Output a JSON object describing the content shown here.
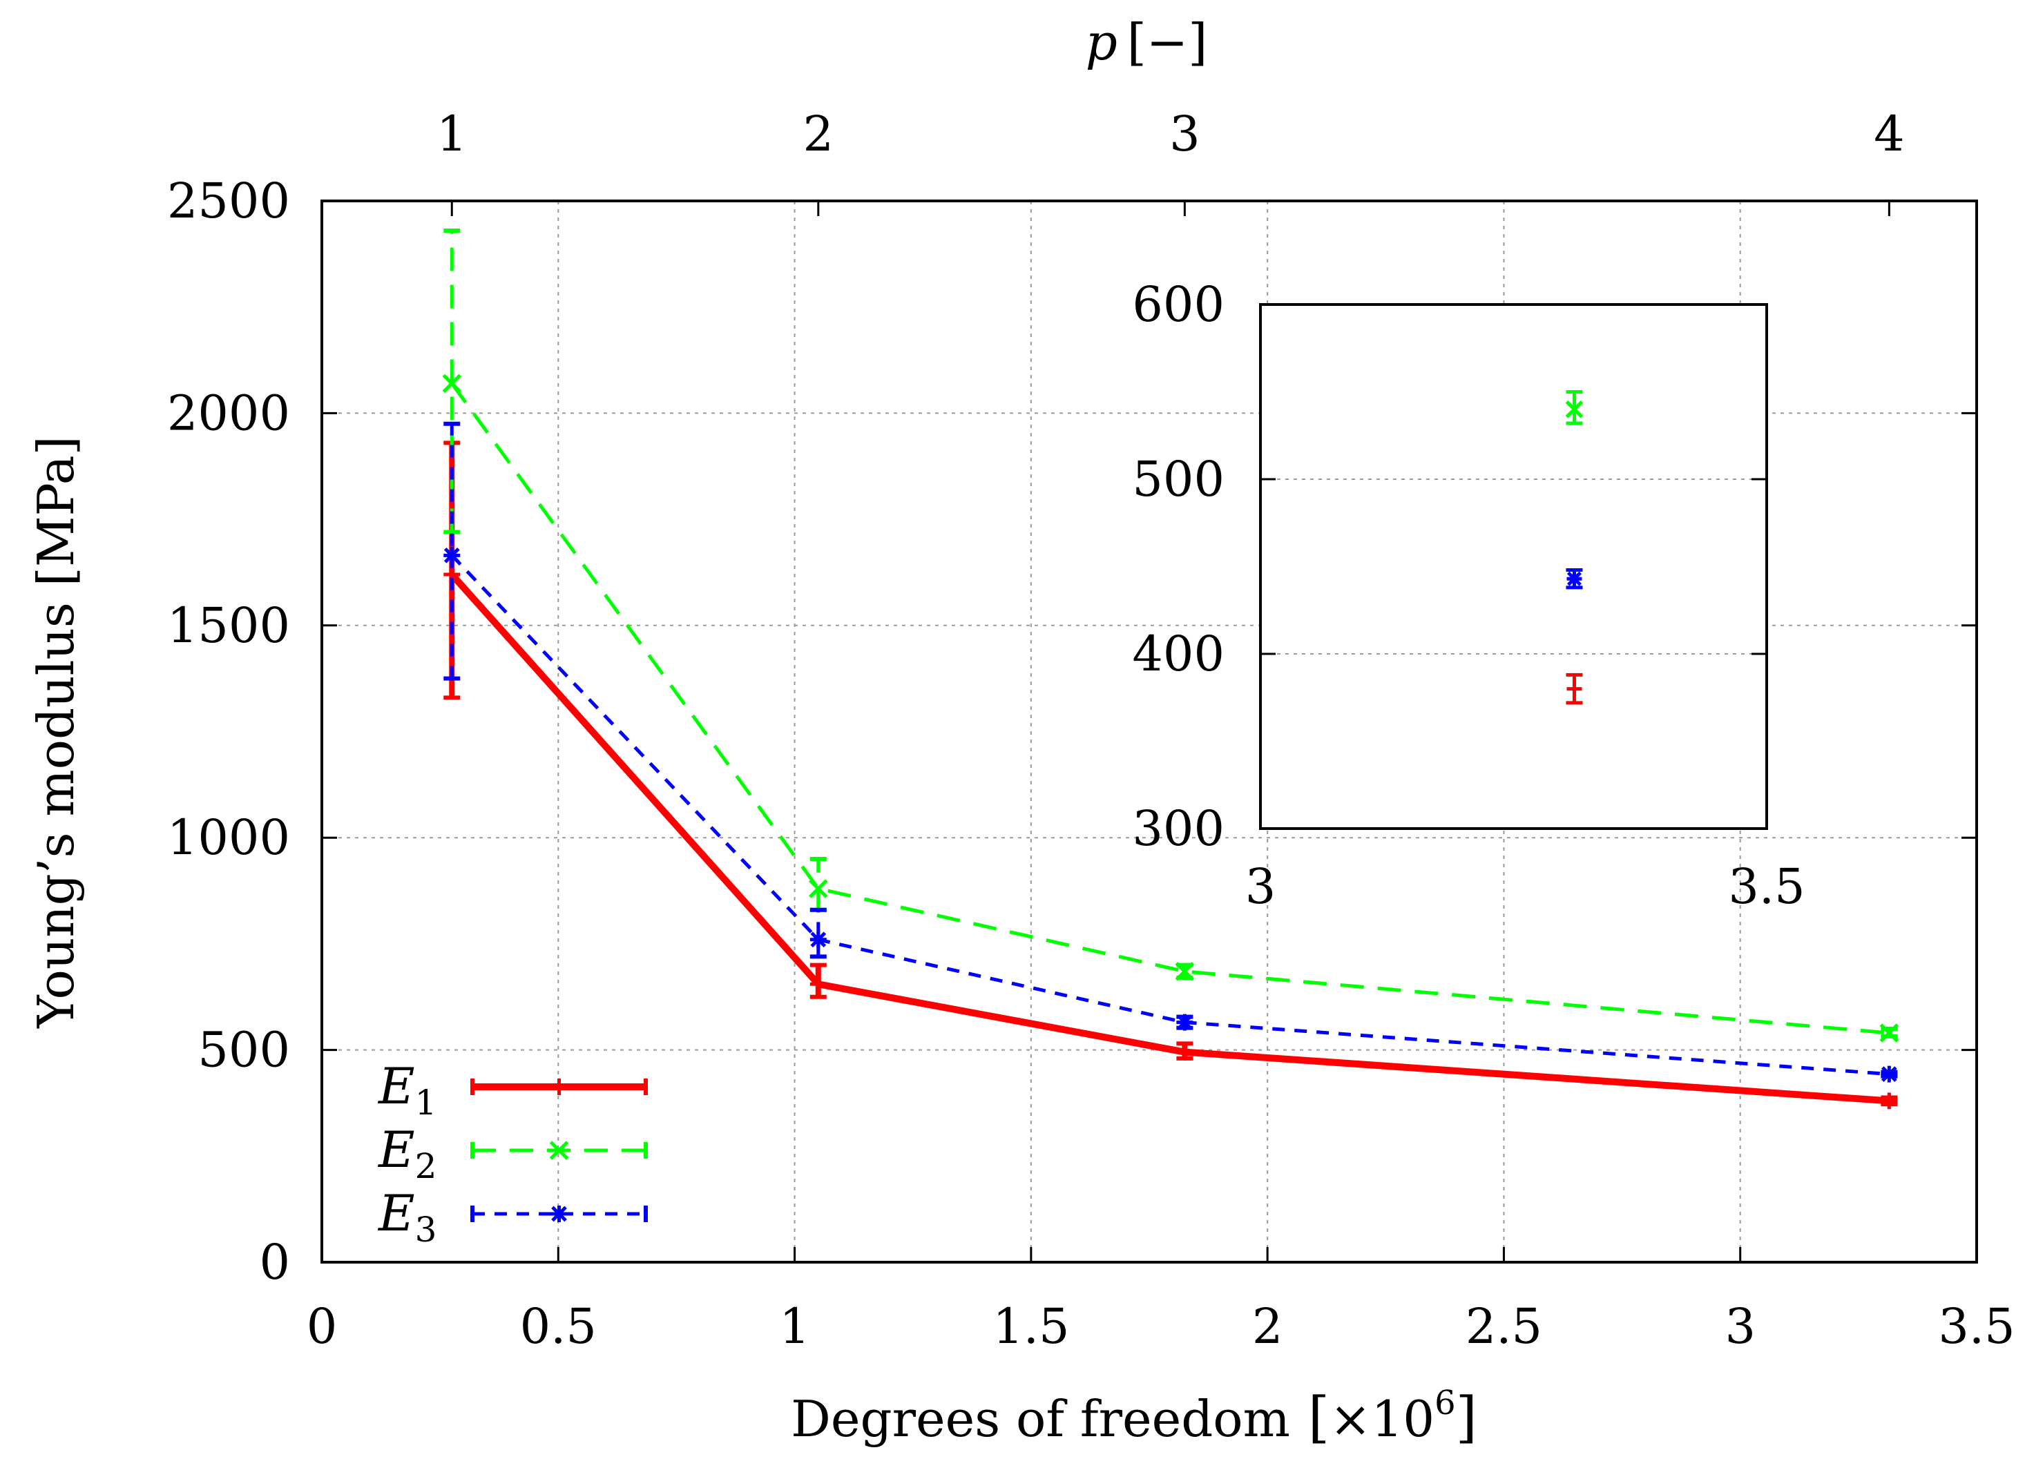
{
  "chart_data": {
    "type": "line",
    "ylabel": "Young’s modulus [MPa]",
    "xlabel_main": "Degrees of freedom",
    "xlabel_open": "[",
    "xlabel_multiplier": "×10",
    "xlabel_exponent": "6",
    "xlabel_close": "]",
    "x2label_var": "p",
    "x2label_unit": "[−]",
    "xlim": [
      0,
      3.5
    ],
    "ylim": [
      0,
      2500
    ],
    "xticks": [
      {
        "value": 0,
        "label": "0"
      },
      {
        "value": 0.5,
        "label": "0.5"
      },
      {
        "value": 1,
        "label": "1"
      },
      {
        "value": 1.5,
        "label": "1.5"
      },
      {
        "value": 2,
        "label": "2"
      },
      {
        "value": 2.5,
        "label": "2.5"
      },
      {
        "value": 3,
        "label": "3"
      },
      {
        "value": 3.5,
        "label": "3.5"
      }
    ],
    "yticks": [
      {
        "value": 0,
        "label": "0"
      },
      {
        "value": 500,
        "label": "500"
      },
      {
        "value": 1000,
        "label": "1000"
      },
      {
        "value": 1500,
        "label": "1500"
      },
      {
        "value": 2000,
        "label": "2000"
      },
      {
        "value": 2500,
        "label": "2500"
      }
    ],
    "x2ticks": [
      {
        "value": 0.275,
        "label": "1"
      },
      {
        "value": 1.05,
        "label": "2"
      },
      {
        "value": 1.825,
        "label": "3"
      },
      {
        "value": 3.315,
        "label": "4"
      }
    ],
    "x": [
      0.275,
      1.05,
      1.825,
      3.315
    ],
    "series": [
      {
        "name": "E",
        "subscript": "1",
        "color": "#ff0000",
        "style": "solid",
        "marker": "plus",
        "values": [
          1620,
          655,
          495,
          380
        ],
        "err_low": [
          1330,
          625,
          480,
          372
        ],
        "err_high": [
          1930,
          700,
          515,
          388
        ]
      },
      {
        "name": "E",
        "subscript": "2",
        "color": "#00ff00",
        "style": "dashed",
        "marker": "cross",
        "values": [
          2070,
          880,
          685,
          540
        ],
        "err_low": [
          1720,
          830,
          670,
          532
        ],
        "err_high": [
          2430,
          950,
          700,
          550
        ]
      },
      {
        "name": "E",
        "subscript": "3",
        "color": "#0000ff",
        "style": "dotted",
        "marker": "star",
        "values": [
          1665,
          760,
          565,
          443
        ],
        "err_low": [
          1375,
          720,
          552,
          438
        ],
        "err_high": [
          1975,
          830,
          578,
          448
        ]
      }
    ],
    "inset": {
      "xlim": [
        3.0,
        3.5
      ],
      "ylim": [
        300,
        600
      ],
      "xticks": [
        {
          "value": 3.0,
          "label": "3"
        },
        {
          "value": 3.5,
          "label": "3.5"
        }
      ],
      "yticks": [
        {
          "value": 300,
          "label": "300"
        },
        {
          "value": 400,
          "label": "400"
        },
        {
          "value": 500,
          "label": "500"
        },
        {
          "value": 600,
          "label": "600"
        }
      ]
    },
    "legend_position": "bottom-left",
    "grid": true
  }
}
